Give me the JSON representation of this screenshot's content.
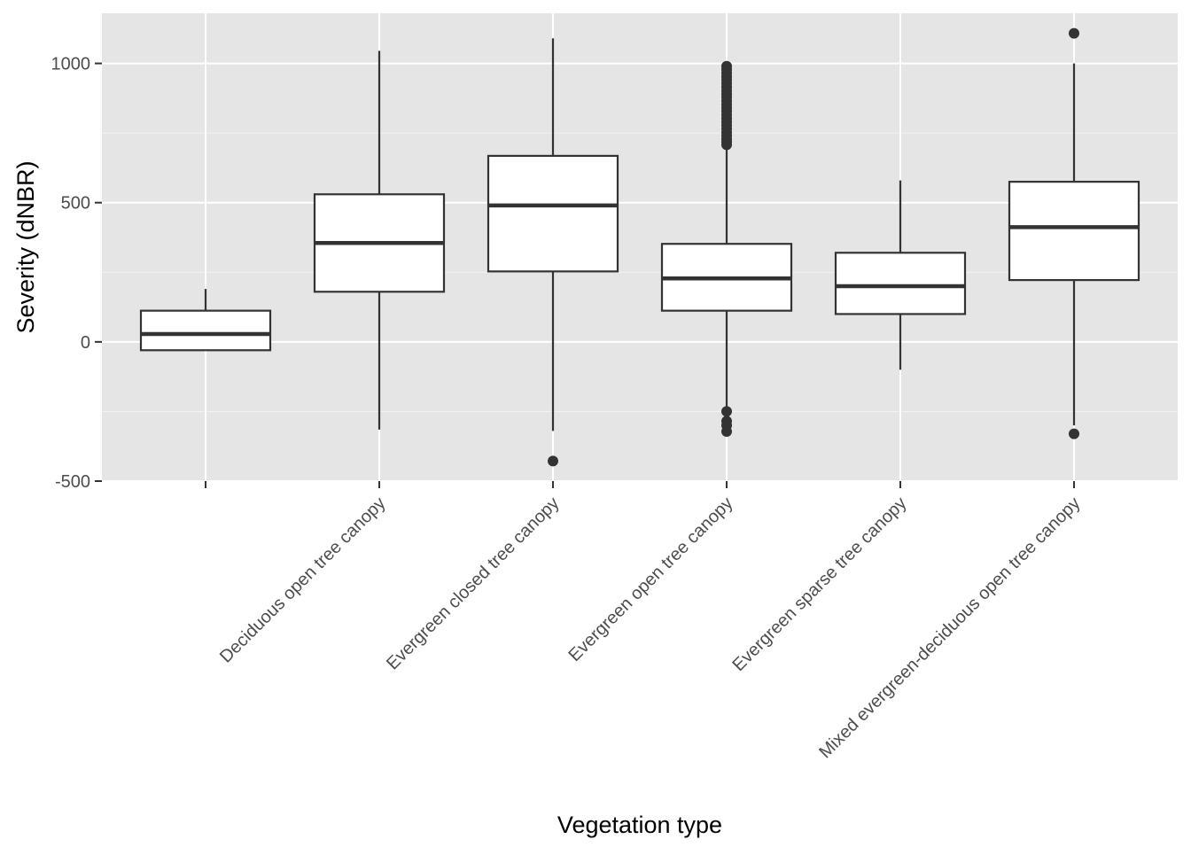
{
  "chart_data": {
    "type": "boxplot",
    "title": "",
    "xlabel": "Vegetation type",
    "ylabel": "Severity (dNBR)",
    "ylim": [
      -500,
      1180
    ],
    "y_ticks": [
      -500,
      0,
      500,
      1000
    ],
    "y_tick_labels": [
      "-500",
      "0",
      "500",
      "1000"
    ],
    "y_minor_ticks": [
      -250,
      250,
      750
    ],
    "grid": true,
    "legend": "none",
    "x_tick_label_rotation": -45,
    "colors": {
      "panel_background": "#e5e5e5",
      "grid": "#ffffff",
      "box_fill": "#ffffff",
      "box_stroke": "#333333",
      "outlier": "#333333",
      "tick_label": "#4d4d4d",
      "axis_title": "#000000"
    },
    "categories": [
      "",
      "Deciduous open tree canopy",
      "Evergreen closed tree canopy",
      "Evergreen open tree canopy",
      "Evergreen sparse tree canopy",
      "Mixed evergreen-deciduous open tree canopy"
    ],
    "boxes": [
      {
        "category": "",
        "lower_whisker": -30,
        "q1": -30,
        "median": 28,
        "q3": 112,
        "upper_whisker": 190,
        "outliers": []
      },
      {
        "category": "Deciduous open tree canopy",
        "lower_whisker": -315,
        "q1": 180,
        "median": 355,
        "q3": 530,
        "upper_whisker": 1045,
        "outliers": []
      },
      {
        "category": "Evergreen closed tree canopy",
        "lower_whisker": -320,
        "q1": 253,
        "median": 490,
        "q3": 668,
        "upper_whisker": 1090,
        "outliers": [
          -428
        ]
      },
      {
        "category": "Evergreen open tree canopy",
        "lower_whisker": -235,
        "q1": 112,
        "median": 228,
        "q3": 352,
        "upper_whisker": 700,
        "outliers": [
          -250,
          -285,
          -300,
          -322,
          708,
          718,
          728,
          740,
          752,
          765,
          778,
          790,
          802,
          815,
          828,
          840,
          852,
          865,
          878,
          890,
          902,
          915,
          928,
          940,
          952,
          965,
          978,
          990
        ]
      },
      {
        "category": "Evergreen sparse tree canopy",
        "lower_whisker": -100,
        "q1": 100,
        "median": 200,
        "q3": 320,
        "upper_whisker": 580,
        "outliers": []
      },
      {
        "category": "Mixed evergreen-deciduous open tree canopy",
        "lower_whisker": -300,
        "q1": 222,
        "median": 412,
        "q3": 575,
        "upper_whisker": 1000,
        "outliers": [
          1108,
          -330
        ]
      }
    ]
  }
}
